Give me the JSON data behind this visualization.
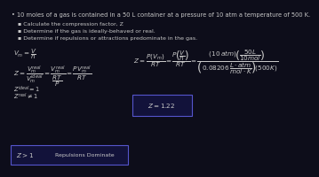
{
  "bg_color": "#0d0d1a",
  "text_color": "#c8c8c8",
  "title": "10 moles of a gas is contained in a 50 L container at a pressure of 10 atm a temperature of 500 K.",
  "bullets": [
    "Calculate the compression factor, Z",
    "Determine if the gas is ideally-behaved or real.",
    "Determine if repulsions or attractions predominate in the gas."
  ],
  "z_box_color": "#12123a",
  "z_box_border": "#5555cc",
  "concl_box_color": "#12123a",
  "concl_border": "#5555cc",
  "fs_title": 4.8,
  "fs_bullet": 4.5,
  "fs_math": 5.2,
  "fs_math_sm": 4.8
}
